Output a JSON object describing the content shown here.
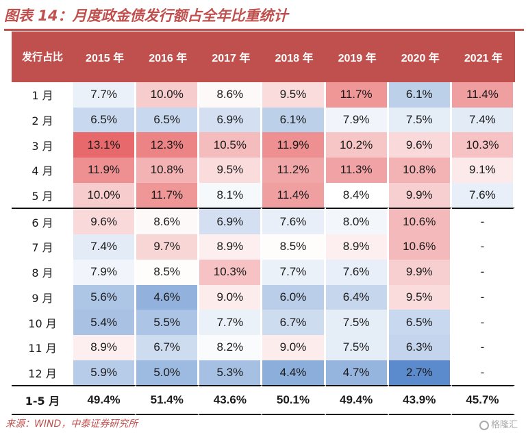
{
  "title": "图表 14：月度政金债发行额占全年比重统计",
  "source": "来源：WIND，中泰证券研究所",
  "watermark": "格隆汇",
  "colors": {
    "header_bg": "#c0504d",
    "title": "#c0504d",
    "high": "#e8696b",
    "mid": "#ffffff",
    "low": "#5b8bcc"
  },
  "chart_data": {
    "type": "heatmap",
    "corner_label": "发行占比",
    "columns": [
      "2015 年",
      "2016 年",
      "2017 年",
      "2018 年",
      "2019 年",
      "2020 年",
      "2021 年"
    ],
    "rows": [
      {
        "label": "1 月",
        "values": [
          "7.7%",
          "10.0%",
          "8.6%",
          "9.5%",
          "11.7%",
          "6.1%",
          "11.4%"
        ]
      },
      {
        "label": "2 月",
        "values": [
          "6.5%",
          "6.5%",
          "6.9%",
          "6.1%",
          "7.9%",
          "7.5%",
          "7.4%"
        ]
      },
      {
        "label": "3 月",
        "values": [
          "13.1%",
          "12.3%",
          "10.5%",
          "11.9%",
          "10.2%",
          "9.6%",
          "10.3%"
        ]
      },
      {
        "label": "4 月",
        "values": [
          "11.9%",
          "10.8%",
          "9.5%",
          "11.2%",
          "11.3%",
          "10.8%",
          "9.1%"
        ]
      },
      {
        "label": "5 月",
        "values": [
          "10.0%",
          "11.7%",
          "8.1%",
          "11.4%",
          "8.4%",
          "9.9%",
          "7.6%"
        ]
      },
      {
        "label": "6 月",
        "values": [
          "9.6%",
          "8.6%",
          "6.9%",
          "7.6%",
          "8.0%",
          "10.6%",
          "-"
        ]
      },
      {
        "label": "7 月",
        "values": [
          "7.4%",
          "9.7%",
          "8.9%",
          "8.5%",
          "8.9%",
          "10.6%",
          "-"
        ]
      },
      {
        "label": "8 月",
        "values": [
          "7.9%",
          "8.5%",
          "10.3%",
          "7.7%",
          "7.6%",
          "9.9%",
          "-"
        ]
      },
      {
        "label": "9 月",
        "values": [
          "5.6%",
          "4.6%",
          "9.0%",
          "6.0%",
          "6.4%",
          "9.5%",
          "-"
        ]
      },
      {
        "label": "10 月",
        "values": [
          "5.4%",
          "5.5%",
          "7.7%",
          "6.7%",
          "7.5%",
          "6.5%",
          "-"
        ]
      },
      {
        "label": "11 月",
        "values": [
          "8.9%",
          "6.7%",
          "8.2%",
          "9.0%",
          "7.5%",
          "6.3%",
          "-"
        ]
      },
      {
        "label": "12 月",
        "values": [
          "5.9%",
          "5.0%",
          "5.3%",
          "4.4%",
          "4.7%",
          "2.7%",
          "-"
        ]
      }
    ],
    "total": {
      "label": "1-5 月",
      "values": [
        "49.4%",
        "51.4%",
        "43.6%",
        "50.1%",
        "49.4%",
        "43.9%",
        "45.7%"
      ]
    }
  }
}
